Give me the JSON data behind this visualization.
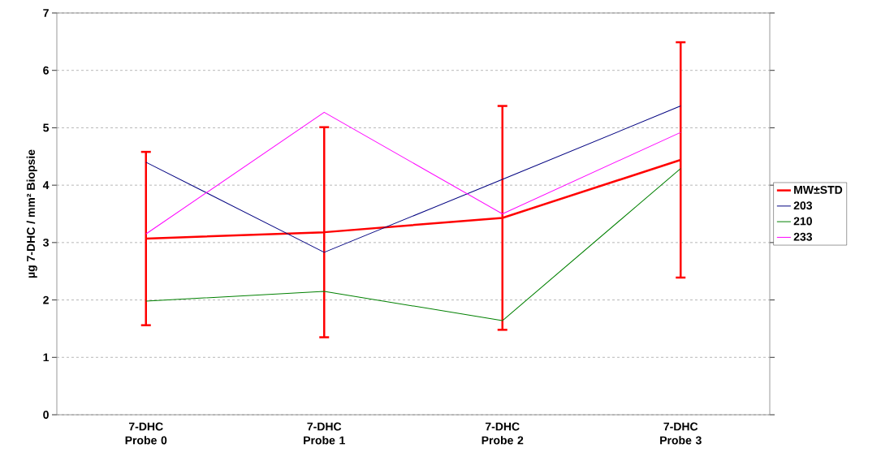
{
  "chart_data": {
    "type": "line",
    "ylabel": "µg 7-DHC / mm² Biopsie",
    "categories": [
      "7-DHC Probe 0",
      "7-DHC Probe 1",
      "7-DHC Probe 2",
      "7-DHC Probe 3"
    ],
    "series": [
      {
        "name": "MW±STD",
        "color": "#ff0000",
        "values": [
          3.07,
          3.18,
          3.43,
          4.44
        ],
        "errors": [
          [
            1.56,
            4.58
          ],
          [
            1.35,
            5.01
          ],
          [
            1.48,
            5.38
          ],
          [
            2.39,
            6.49
          ]
        ]
      },
      {
        "name": "203",
        "color": "#000080",
        "values": [
          4.4,
          2.83,
          4.1,
          5.38
        ]
      },
      {
        "name": "210",
        "color": "#008000",
        "values": [
          1.98,
          2.15,
          1.64,
          4.29
        ]
      },
      {
        "name": "233",
        "color": "#ff00ff",
        "values": [
          3.15,
          5.27,
          3.5,
          4.92
        ]
      }
    ],
    "ylim": [
      0,
      7
    ],
    "yticks": [
      0,
      1,
      2,
      3,
      4,
      5,
      6,
      7
    ],
    "grid": "y",
    "legend": "right",
    "marker": "none",
    "line_style": "solid"
  }
}
